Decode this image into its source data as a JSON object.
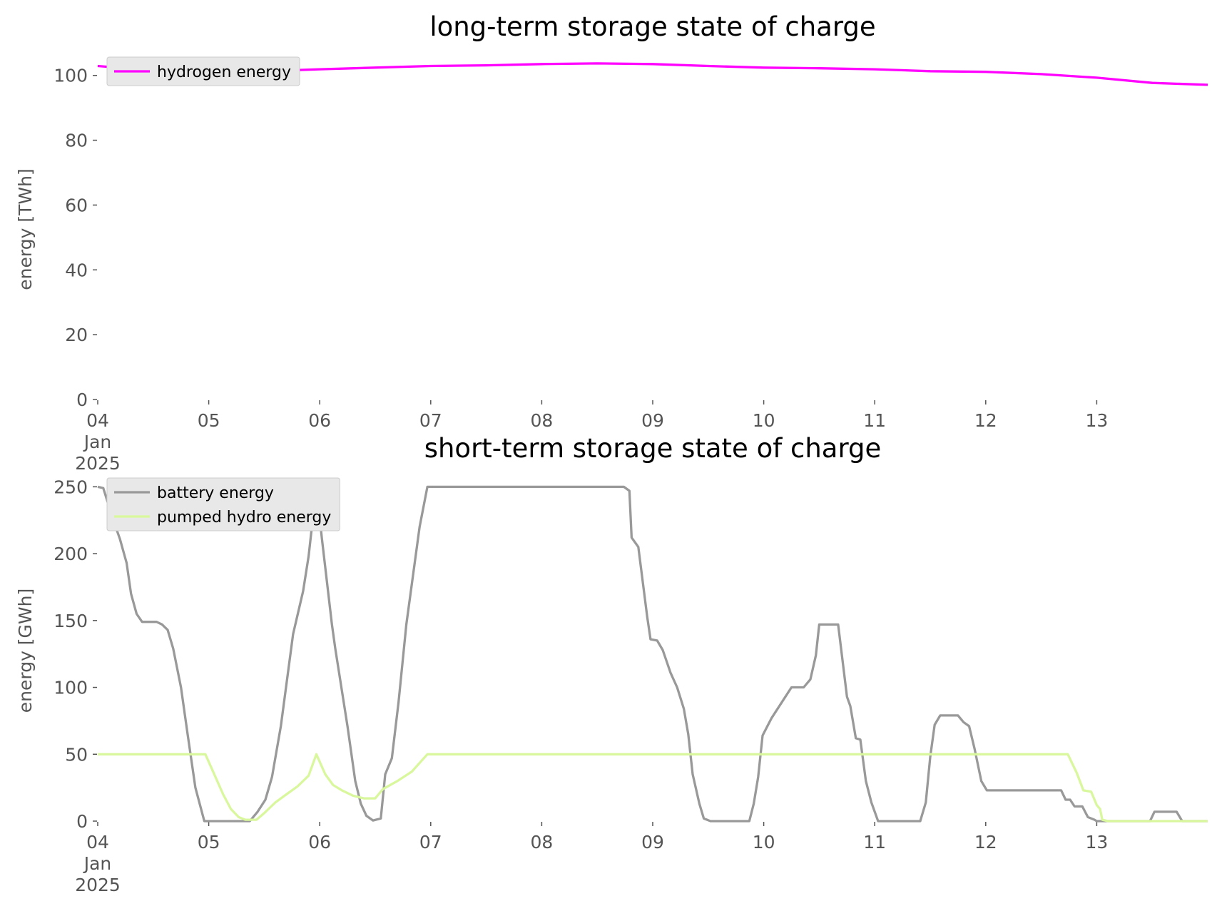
{
  "chart_data": [
    {
      "type": "line",
      "title": "long-term storage state of charge",
      "ylabel": "energy [TWh]",
      "xlim": [
        0,
        10
      ],
      "ylim": [
        0,
        105
      ],
      "xticks": [
        {
          "value": 0,
          "label": "04\nJan\n2025"
        },
        {
          "value": 1,
          "label": "05"
        },
        {
          "value": 2,
          "label": "06"
        },
        {
          "value": 3,
          "label": "07"
        },
        {
          "value": 4,
          "label": "08"
        },
        {
          "value": 5,
          "label": "09"
        },
        {
          "value": 6,
          "label": "10"
        },
        {
          "value": 7,
          "label": "11"
        },
        {
          "value": 8,
          "label": "12"
        },
        {
          "value": 9,
          "label": "13"
        }
      ],
      "yticks": [
        0,
        20,
        40,
        60,
        80,
        100
      ],
      "grid": false,
      "legend": "upper left",
      "series": [
        {
          "name": "hydrogen energy",
          "color": "#ff00ff",
          "x": [
            0,
            0.5,
            1,
            1.5,
            2,
            3,
            3.5,
            4,
            4.5,
            5,
            5.5,
            6,
            6.5,
            7,
            7.5,
            8,
            8.5,
            9,
            9.5,
            10
          ],
          "values": [
            102.9,
            101.5,
            101,
            101.3,
            101.9,
            102.9,
            103.1,
            103.5,
            103.7,
            103.5,
            102.9,
            102.4,
            102.2,
            101.9,
            101.3,
            101.1,
            100.4,
            99.3,
            97.7,
            97.1
          ]
        }
      ]
    },
    {
      "type": "line",
      "title": "short-term storage state of charge",
      "ylabel": "energy [GWh]",
      "xlim": [
        0,
        10
      ],
      "ylim": [
        0,
        255
      ],
      "xticks": [
        {
          "value": 0,
          "label": "04\nJan\n2025"
        },
        {
          "value": 1,
          "label": "05"
        },
        {
          "value": 2,
          "label": "06"
        },
        {
          "value": 3,
          "label": "07"
        },
        {
          "value": 4,
          "label": "08"
        },
        {
          "value": 5,
          "label": "09"
        },
        {
          "value": 6,
          "label": "10"
        },
        {
          "value": 7,
          "label": "11"
        },
        {
          "value": 8,
          "label": "12"
        },
        {
          "value": 9,
          "label": "13"
        }
      ],
      "yticks": [
        0,
        50,
        100,
        150,
        200,
        250
      ],
      "grid": false,
      "legend": "upper left",
      "series": [
        {
          "name": "battery energy",
          "color": "#999999",
          "x": [
            0,
            0.05,
            0.14,
            0.2,
            0.26,
            0.3,
            0.35,
            0.4,
            0.53,
            0.58,
            0.63,
            0.68,
            0.75,
            0.81,
            0.88,
            0.96,
            1.37,
            1.44,
            1.51,
            1.57,
            1.65,
            1.76,
            1.85,
            1.9,
            1.97,
            2.02,
            2.11,
            2.14,
            2.25,
            2.32,
            2.37,
            2.42,
            2.48,
            2.55,
            2.59,
            2.65,
            2.71,
            2.78,
            2.9,
            2.97,
            4.74,
            4.79,
            4.81,
            4.87,
            4.95,
            4.98,
            5.04,
            5.09,
            5.16,
            5.22,
            5.28,
            5.32,
            5.36,
            5.42,
            5.46,
            5.52,
            5.87,
            5.91,
            5.95,
            5.99,
            6.07,
            6.25,
            6.36,
            6.42,
            6.47,
            6.5,
            6.67,
            6.75,
            6.78,
            6.83,
            6.87,
            6.92,
            6.97,
            7.03,
            7.41,
            7.46,
            7.5,
            7.54,
            7.59,
            7.75,
            7.8,
            7.85,
            7.9,
            7.96,
            8.01,
            8.68,
            8.72,
            8.76,
            8.8,
            8.87,
            8.92,
            8.98,
            9.0,
            9.48,
            9.52,
            9.72,
            9.77,
            10
          ],
          "values": [
            250,
            249,
            225,
            211,
            193,
            170,
            155,
            149,
            149,
            147,
            143,
            129,
            100,
            65,
            25,
            0,
            0,
            7,
            16,
            33,
            71,
            140,
            172,
            198,
            250,
            211,
            147,
            129,
            71,
            30,
            13,
            4,
            0.5,
            2,
            35,
            47,
            89,
            147,
            220,
            250,
            250,
            247,
            212,
            205,
            153,
            136,
            135,
            128,
            111,
            100,
            84,
            65,
            35,
            13,
            2,
            0,
            0,
            13,
            33,
            64,
            77,
            100,
            100,
            106,
            124,
            147,
            147,
            93,
            86,
            62,
            61,
            30,
            14,
            0,
            0,
            14,
            48,
            72,
            79,
            79,
            74,
            71,
            54,
            30,
            23,
            23,
            16,
            16,
            11,
            11,
            3,
            1,
            0,
            0,
            7,
            7,
            0,
            0
          ]
        },
        {
          "name": "pumped hydro energy",
          "color": "#d9f79c",
          "x": [
            0,
            0.97,
            1.05,
            1.13,
            1.2,
            1.27,
            1.33,
            1.43,
            1.5,
            1.6,
            1.7,
            1.8,
            1.9,
            1.97,
            2.05,
            2.12,
            2.2,
            2.3,
            2.4,
            2.5,
            2.57,
            2.7,
            2.83,
            2.97,
            8.74,
            8.82,
            8.88,
            8.95,
            9.0,
            9.03,
            9.05,
            9.1,
            10
          ],
          "values": [
            50,
            50,
            35,
            20,
            9,
            3,
            1,
            1,
            6,
            14,
            20,
            26,
            34,
            50,
            35,
            27,
            23,
            19,
            17,
            17,
            24,
            30,
            37,
            50,
            50,
            36,
            23,
            22,
            12,
            9,
            1,
            0,
            0
          ]
        }
      ]
    }
  ]
}
